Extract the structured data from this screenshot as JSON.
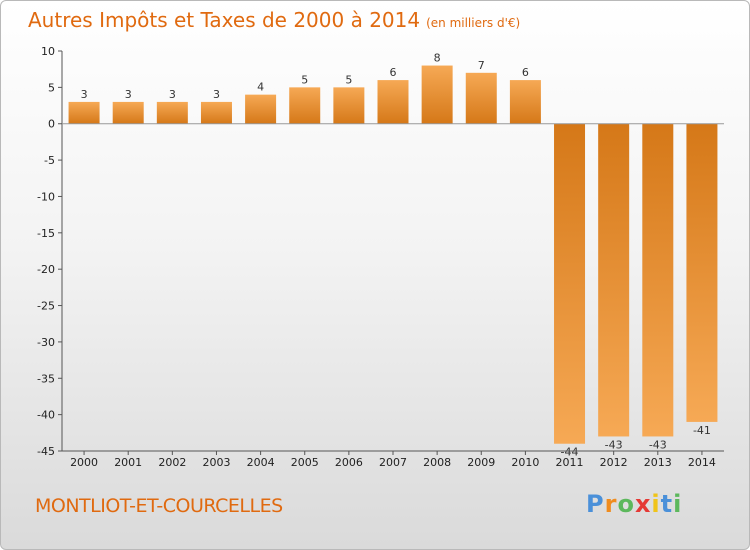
{
  "header": {
    "title": "Autres Impôts et Taxes de 2000 à 2014",
    "subtitle": "(en milliers d'€)"
  },
  "footer": {
    "city": "MONTLIOT-ET-COURCELLES",
    "logo_letters": [
      "P",
      "r",
      "o",
      "x",
      "i",
      "t",
      "i"
    ]
  },
  "colors": {
    "accent": "#e06a10",
    "bar_light": "#f6a955",
    "bar_dark": "#d57818",
    "logo": [
      "#4a90d9",
      "#f08c1e",
      "#5cb85c",
      "#e53935",
      "#f0c419",
      "#4a90d9",
      "#5cb85c"
    ]
  },
  "chart_data": {
    "type": "bar",
    "categories": [
      "2000",
      "2001",
      "2002",
      "2003",
      "2004",
      "2005",
      "2006",
      "2007",
      "2008",
      "2009",
      "2010",
      "2011",
      "2012",
      "2013",
      "2014"
    ],
    "values": [
      3,
      3,
      3,
      3,
      4,
      5,
      5,
      6,
      8,
      7,
      6,
      -44,
      -43,
      -43,
      -41
    ],
    "yticks": [
      10,
      5,
      0,
      -5,
      -10,
      -15,
      -20,
      -25,
      -30,
      -35,
      -40,
      -45
    ],
    "ylim": [
      -45,
      10
    ],
    "title": "Autres Impôts et Taxes de 2000 à 2014",
    "xlabel": "",
    "ylabel": "",
    "grid": false
  }
}
